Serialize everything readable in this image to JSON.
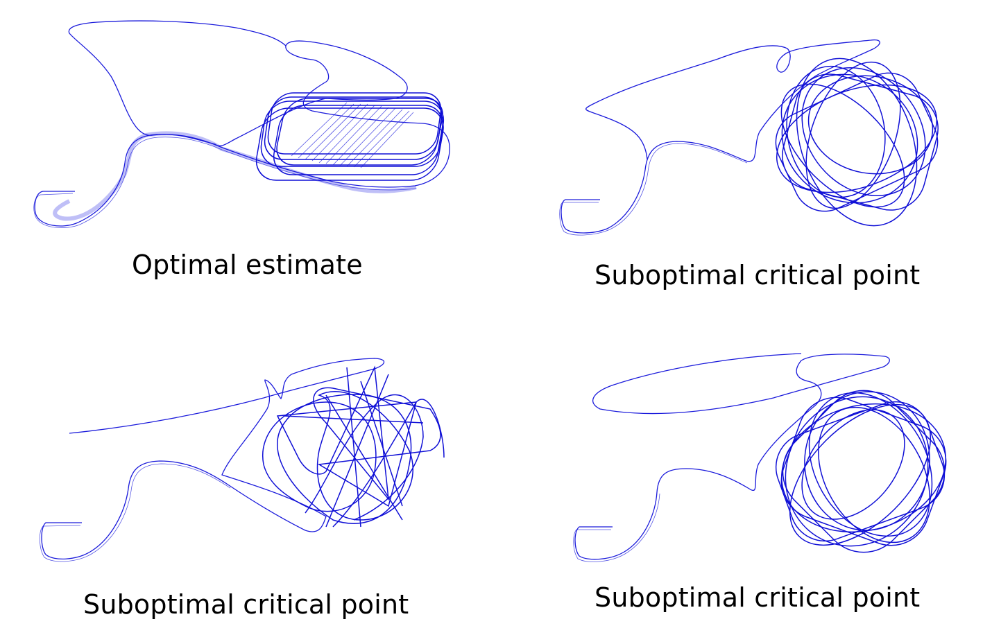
{
  "panels": [
    {
      "caption": "Optimal estimate"
    },
    {
      "caption": "Suboptimal critical point"
    },
    {
      "caption": "Suboptimal critical point"
    },
    {
      "caption": "Suboptimal critical point"
    }
  ],
  "colors": {
    "trajectory": "#1a1adb"
  }
}
